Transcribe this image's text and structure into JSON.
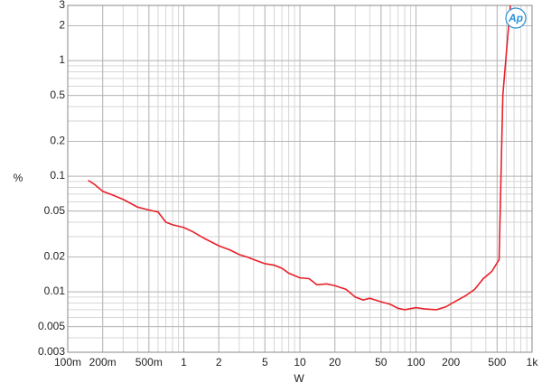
{
  "chart_data": {
    "type": "line",
    "logo": "Ap",
    "xlabel": "W",
    "ylabel": "%",
    "xscale": "log",
    "yscale": "log",
    "grid": true,
    "xlim": [
      0.1,
      1000
    ],
    "ylim": [
      0.003,
      3
    ],
    "xticks": [
      {
        "value": 0.1,
        "label": "100m"
      },
      {
        "value": 0.2,
        "label": "200m"
      },
      {
        "value": 0.5,
        "label": "500m"
      },
      1,
      2,
      5,
      10,
      20,
      50,
      100,
      200,
      500,
      {
        "value": 1000,
        "label": "1k"
      }
    ],
    "yticks": [
      0.003,
      0.005,
      0.01,
      0.02,
      0.05,
      0.1,
      0.2,
      0.5,
      1,
      2,
      3
    ],
    "series": [
      {
        "color": "#e8202a",
        "x": [
          0.15,
          0.17,
          0.2,
          0.25,
          0.3,
          0.4,
          0.5,
          0.6,
          0.7,
          0.8,
          1,
          1.2,
          1.5,
          2,
          2.5,
          3,
          3.5,
          4,
          5,
          6,
          7,
          8,
          10,
          12,
          14,
          17,
          20,
          25,
          30,
          35,
          40,
          50,
          60,
          70,
          80,
          100,
          120,
          150,
          180,
          220,
          270,
          320,
          380,
          450,
          520,
          560,
          650
        ],
        "values": [
          0.092,
          0.085,
          0.074,
          0.068,
          0.063,
          0.054,
          0.051,
          0.049,
          0.04,
          0.038,
          0.036,
          0.033,
          0.029,
          0.025,
          0.023,
          0.021,
          0.02,
          0.019,
          0.0175,
          0.017,
          0.016,
          0.0145,
          0.0132,
          0.013,
          0.0115,
          0.0117,
          0.0113,
          0.0105,
          0.009,
          0.0085,
          0.0088,
          0.0082,
          0.0078,
          0.0072,
          0.007,
          0.0073,
          0.0071,
          0.007,
          0.0074,
          0.0083,
          0.0093,
          0.0105,
          0.013,
          0.015,
          0.019,
          0.5,
          3
        ]
      }
    ]
  }
}
